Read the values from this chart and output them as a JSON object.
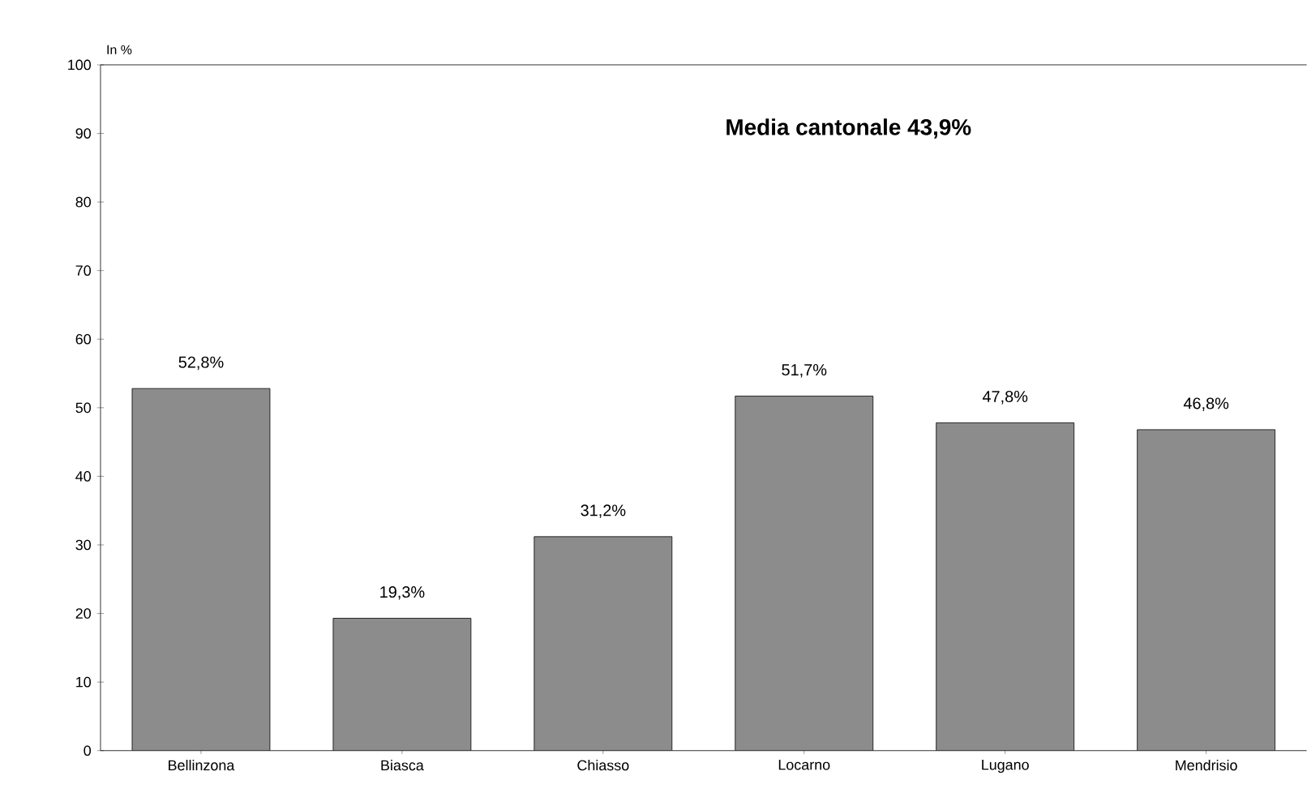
{
  "chart_data": {
    "type": "bar",
    "ylabel": "In %",
    "categories": [
      "Bellinzona",
      "Biasca",
      "Chiasso",
      "Locarno",
      "Lugano",
      "Mendrisio"
    ],
    "values": [
      52.8,
      19.3,
      31.2,
      51.7,
      47.8,
      46.8
    ],
    "value_labels": [
      "52,8%",
      "19,3%",
      "31,2%",
      "51,7%",
      "47,8%",
      "46,8%"
    ],
    "color": "#8c8c8c",
    "ylim": [
      0,
      100
    ],
    "yticks": [
      0,
      10,
      20,
      30,
      40,
      50,
      60,
      70,
      80,
      90,
      100
    ],
    "annotations": [
      "Media cantonale 43,9%"
    ]
  }
}
